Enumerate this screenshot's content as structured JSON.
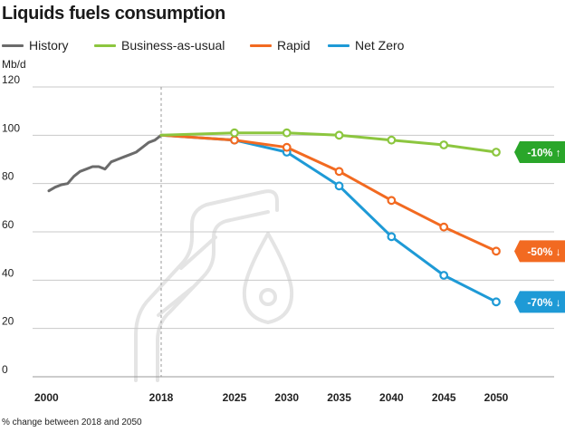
{
  "colors": {
    "history": "#6b6b6b",
    "bau": "#8cc63f",
    "rapid": "#f26a21",
    "netzero": "#1e9ad6",
    "badge_green": "#2aa62a",
    "grid": "#c8c8c8",
    "watermark": "#e4e4e4"
  },
  "chart_data": {
    "type": "line",
    "title": "Liquids fuels consumption",
    "ylabel": "Mb/d",
    "xlabel": "",
    "ylim": [
      0,
      120
    ],
    "yticks": [
      0,
      20,
      40,
      60,
      80,
      100,
      120
    ],
    "xtick_labels": [
      "2000",
      "2018",
      "2025",
      "2030",
      "2035",
      "2040",
      "2045",
      "2050"
    ],
    "grid": true,
    "legend_position": "top",
    "footnote": "% change between 2018 and 2050",
    "series": [
      {
        "key": "history",
        "name": "History",
        "x": [
          2000,
          2001,
          2002,
          2003,
          2004,
          2005,
          2006,
          2007,
          2008,
          2009,
          2010,
          2011,
          2012,
          2013,
          2014,
          2015,
          2016,
          2017,
          2018
        ],
        "y": [
          77,
          78.5,
          79.5,
          80,
          83,
          85,
          86,
          87,
          87,
          86,
          89,
          90,
          91,
          92,
          93,
          95,
          97,
          98,
          100
        ],
        "markers": false
      },
      {
        "key": "bau",
        "name": "Business-as-usual",
        "x": [
          2018,
          2025,
          2030,
          2035,
          2040,
          2045,
          2050
        ],
        "y": [
          100,
          101,
          101,
          100,
          98,
          96,
          93
        ],
        "markers": true,
        "badge": "-10% ↑",
        "badge_color": "#2aa62a"
      },
      {
        "key": "rapid",
        "name": "Rapid",
        "x": [
          2018,
          2025,
          2030,
          2035,
          2040,
          2045,
          2050
        ],
        "y": [
          100,
          98,
          95,
          85,
          73,
          62,
          52
        ],
        "markers": true,
        "badge": "-50% ↓",
        "badge_color": "#f26a21"
      },
      {
        "key": "netzero",
        "name": "Net Zero",
        "x": [
          2018,
          2025,
          2030,
          2035,
          2040,
          2045,
          2050
        ],
        "y": [
          100,
          98,
          93,
          79,
          58,
          42,
          31
        ],
        "markers": true,
        "badge": "-70% ↓",
        "badge_color": "#1e9ad6"
      }
    ]
  }
}
